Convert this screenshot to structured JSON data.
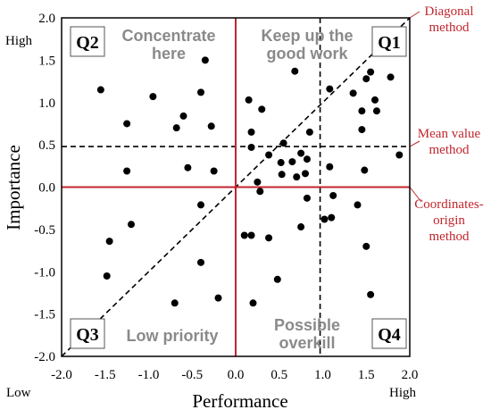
{
  "chart_data": {
    "type": "scatter",
    "xlabel": "Performance",
    "ylabel": "Importance",
    "xlim": [
      -2.0,
      2.0
    ],
    "ylim": [
      -2.0,
      2.0
    ],
    "x_ticks": [
      "-2.0",
      "-1.5",
      "-1.0",
      "-0.5",
      "0.0",
      "0.5",
      "1.0",
      "1.5",
      "2.0"
    ],
    "y_ticks": [
      "2.0",
      "1.5",
      "1.0",
      "0.5",
      "0.0",
      "-0.5",
      "-1.0",
      "-1.5",
      "-2.0"
    ],
    "x_low_label": "Low",
    "x_high_label": "High",
    "y_high_label": "High",
    "mean_x": 0.97,
    "mean_y": 0.48,
    "grid": false,
    "quadrants": [
      {
        "id": "Q1",
        "text_lines": [
          "Keep up the",
          "good work"
        ]
      },
      {
        "id": "Q2",
        "text_lines": [
          "Concentrate",
          "here"
        ]
      },
      {
        "id": "Q3",
        "text_lines": [
          "Low priority"
        ]
      },
      {
        "id": "Q4",
        "text_lines": [
          "Possible",
          "overkill"
        ]
      }
    ],
    "methods": {
      "diagonal": [
        "Diagonal",
        "method"
      ],
      "mean": [
        "Mean value",
        "method"
      ],
      "origin": [
        "Coordinates-",
        "origin",
        "method"
      ]
    },
    "points": [
      {
        "x": -1.55,
        "y": 1.15
      },
      {
        "x": -0.95,
        "y": 1.07
      },
      {
        "x": -0.4,
        "y": 1.12
      },
      {
        "x": -0.35,
        "y": 1.5
      },
      {
        "x": -0.28,
        "y": 0.72
      },
      {
        "x": -0.6,
        "y": 0.84
      },
      {
        "x": -0.68,
        "y": 0.7
      },
      {
        "x": -1.25,
        "y": 0.75
      },
      {
        "x": -1.25,
        "y": 0.19
      },
      {
        "x": -0.55,
        "y": 0.23
      },
      {
        "x": -0.25,
        "y": 0.19
      },
      {
        "x": -0.4,
        "y": -0.21
      },
      {
        "x": -1.2,
        "y": -0.44
      },
      {
        "x": -1.45,
        "y": -0.64
      },
      {
        "x": -1.48,
        "y": -1.05
      },
      {
        "x": -0.4,
        "y": -0.89
      },
      {
        "x": -0.7,
        "y": -1.37
      },
      {
        "x": -0.2,
        "y": -1.31
      },
      {
        "x": 0.15,
        "y": 1.03
      },
      {
        "x": 0.3,
        "y": 0.92
      },
      {
        "x": 0.18,
        "y": 0.65
      },
      {
        "x": 0.18,
        "y": 0.47
      },
      {
        "x": 0.38,
        "y": 0.38
      },
      {
        "x": 0.55,
        "y": 0.52
      },
      {
        "x": 0.52,
        "y": 0.29
      },
      {
        "x": 0.65,
        "y": 0.3
      },
      {
        "x": 0.75,
        "y": 0.4
      },
      {
        "x": 0.82,
        "y": 0.33
      },
      {
        "x": 0.53,
        "y": 0.15
      },
      {
        "x": 0.7,
        "y": 0.12
      },
      {
        "x": 0.8,
        "y": 0.16
      },
      {
        "x": 0.85,
        "y": 0.65
      },
      {
        "x": 0.68,
        "y": 1.37
      },
      {
        "x": 0.25,
        "y": 0.06
      },
      {
        "x": 0.28,
        "y": -0.05
      },
      {
        "x": 0.82,
        "y": -0.13
      },
      {
        "x": 0.75,
        "y": -0.47
      },
      {
        "x": 0.38,
        "y": -0.6
      },
      {
        "x": 0.1,
        "y": -0.57
      },
      {
        "x": 0.18,
        "y": -0.57
      },
      {
        "x": 0.2,
        "y": -1.37
      },
      {
        "x": 0.48,
        "y": -1.09
      },
      {
        "x": 1.02,
        "y": -0.38
      },
      {
        "x": 1.1,
        "y": -0.36
      },
      {
        "x": 1.12,
        "y": -0.1
      },
      {
        "x": 1.08,
        "y": 0.24
      },
      {
        "x": 1.08,
        "y": 1.16
      },
      {
        "x": 1.35,
        "y": 1.11
      },
      {
        "x": 1.45,
        "y": 0.9
      },
      {
        "x": 1.45,
        "y": 0.68
      },
      {
        "x": 1.5,
        "y": 1.28
      },
      {
        "x": 1.55,
        "y": 1.36
      },
      {
        "x": 1.6,
        "y": 1.03
      },
      {
        "x": 1.62,
        "y": 0.9
      },
      {
        "x": 1.78,
        "y": 1.3
      },
      {
        "x": 1.88,
        "y": 0.38
      },
      {
        "x": 1.48,
        "y": 0.2
      },
      {
        "x": 1.4,
        "y": -0.21
      },
      {
        "x": 1.5,
        "y": -0.7
      },
      {
        "x": 1.55,
        "y": -1.27
      }
    ]
  }
}
